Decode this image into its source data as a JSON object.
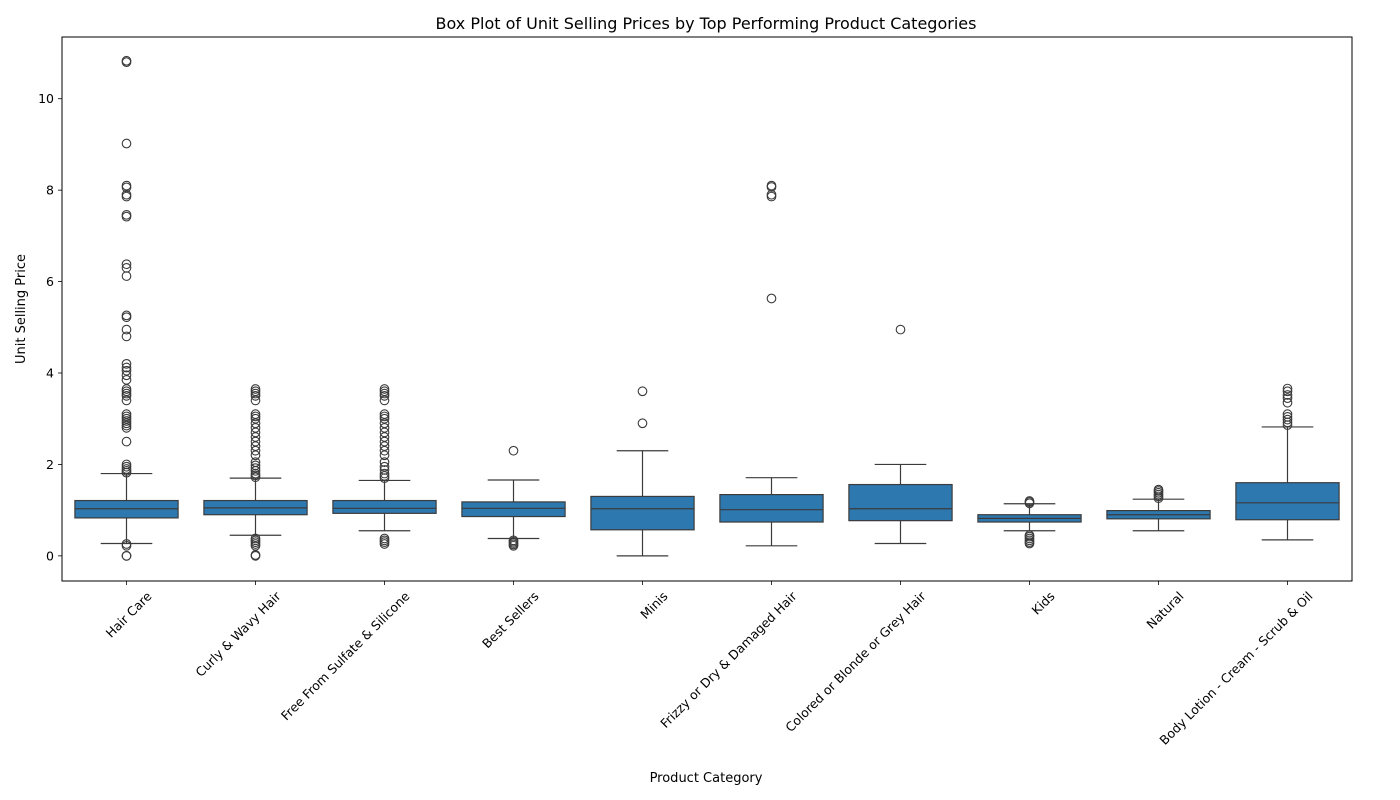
{
  "chart_data": {
    "type": "boxplot",
    "title": "Box Plot of Unit Selling Prices by Top Performing Product Categories",
    "xlabel": "Product Category",
    "ylabel": "Unit Selling Price",
    "ylim": [
      -0.55,
      11.35
    ],
    "yticks": [
      0,
      2,
      4,
      6,
      8,
      10
    ],
    "grid": false,
    "box_color": "#2e78b0",
    "line_color": "#3b3b3b",
    "categories": [
      "Hair Care",
      "Curly & Wavy Hair",
      "Free From Sulfate & Silicone",
      "Best Sellers",
      "Minis",
      "Frizzy or Dry & Damaged Hair",
      "Colored or Blonde or Grey Hair",
      "Kids",
      "Natural",
      "Body Lotion - Cream - Scrub & Oil"
    ],
    "boxes": [
      {
        "whisker_low": 0.27,
        "q1": 0.83,
        "median": 1.03,
        "q3": 1.21,
        "whisker_high": 1.8,
        "outliers": [
          0.0,
          0.0,
          0.22,
          0.26,
          1.82,
          1.86,
          1.9,
          1.95,
          2.0,
          2.5,
          2.8,
          2.85,
          2.9,
          2.95,
          3.0,
          3.05,
          3.1,
          3.4,
          3.5,
          3.55,
          3.6,
          3.65,
          3.85,
          3.95,
          4.05,
          4.12,
          4.2,
          4.8,
          4.95,
          5.22,
          5.26,
          6.12,
          6.3,
          6.38,
          7.42,
          7.46,
          7.86,
          7.9,
          8.06,
          8.1,
          9.02,
          10.8,
          10.83
        ]
      },
      {
        "whisker_low": 0.45,
        "q1": 0.9,
        "median": 1.05,
        "q3": 1.21,
        "whisker_high": 1.7,
        "outliers": [
          0.0,
          0.02,
          0.22,
          0.26,
          0.3,
          0.34,
          0.38,
          1.72,
          1.76,
          1.8,
          1.86,
          1.92,
          1.98,
          2.05,
          2.2,
          2.3,
          2.4,
          2.5,
          2.6,
          2.7,
          2.8,
          2.9,
          3.0,
          3.05,
          3.1,
          3.4,
          3.5,
          3.55,
          3.6,
          3.65
        ]
      },
      {
        "whisker_low": 0.55,
        "q1": 0.93,
        "median": 1.04,
        "q3": 1.21,
        "whisker_high": 1.65,
        "outliers": [
          0.26,
          0.3,
          0.34,
          0.38,
          1.7,
          1.75,
          1.8,
          1.88,
          1.95,
          2.05,
          2.2,
          2.3,
          2.4,
          2.5,
          2.6,
          2.7,
          2.8,
          2.9,
          3.0,
          3.05,
          3.1,
          3.4,
          3.5,
          3.55,
          3.6,
          3.65
        ]
      },
      {
        "whisker_low": 0.38,
        "q1": 0.86,
        "median": 1.04,
        "q3": 1.18,
        "whisker_high": 1.66,
        "outliers": [
          0.22,
          0.25,
          0.28,
          0.31,
          0.34,
          2.3
        ]
      },
      {
        "whisker_low": 0.0,
        "q1": 0.57,
        "median": 1.03,
        "q3": 1.3,
        "whisker_high": 2.3,
        "outliers": [
          2.9,
          3.6
        ]
      },
      {
        "whisker_low": 0.22,
        "q1": 0.74,
        "median": 1.01,
        "q3": 1.34,
        "whisker_high": 1.71,
        "outliers": [
          5.63,
          7.86,
          7.9,
          8.07,
          8.1
        ]
      },
      {
        "whisker_low": 0.27,
        "q1": 0.77,
        "median": 1.03,
        "q3": 1.56,
        "whisker_high": 2.0,
        "outliers": [
          4.95
        ]
      },
      {
        "whisker_low": 0.55,
        "q1": 0.74,
        "median": 0.82,
        "q3": 0.9,
        "whisker_high": 1.14,
        "outliers": [
          0.27,
          0.3,
          0.34,
          0.38,
          0.42,
          0.45,
          1.15,
          1.18,
          1.2
        ]
      },
      {
        "whisker_low": 0.55,
        "q1": 0.81,
        "median": 0.9,
        "q3": 0.99,
        "whisker_high": 1.24,
        "outliers": [
          1.26,
          1.3,
          1.34,
          1.38,
          1.42,
          1.45
        ]
      },
      {
        "whisker_low": 0.35,
        "q1": 0.79,
        "median": 1.16,
        "q3": 1.6,
        "whisker_high": 2.82,
        "outliers": [
          2.86,
          2.92,
          2.98,
          3.04,
          3.1,
          3.35,
          3.45,
          3.52,
          3.6,
          3.66
        ]
      }
    ]
  }
}
